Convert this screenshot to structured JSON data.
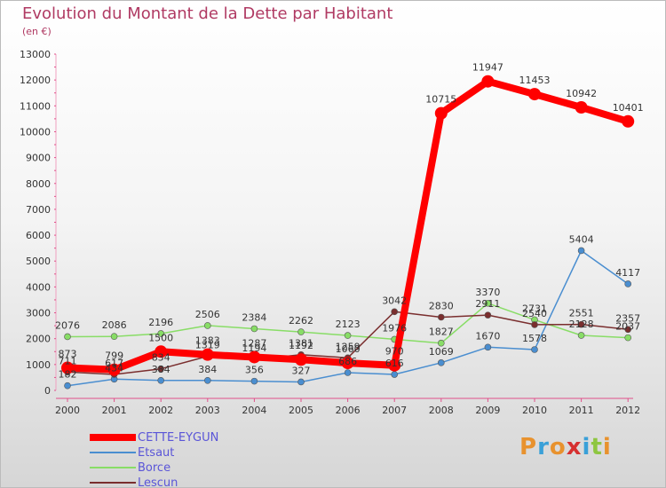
{
  "page": {
    "title": "Evolution du Montant de la Dette par Habitant",
    "subtitle": "(en €)",
    "logo": "Proxiti",
    "logo_colors": [
      "#e8922e",
      "#3aa0d8",
      "#e8922e",
      "#d63030",
      "#3aa0d8",
      "#8ec641",
      "#e8922e"
    ]
  },
  "chart_data": {
    "type": "line",
    "title": "Evolution du Montant de la Dette par Habitant",
    "subtitle": "(en €)",
    "x": [
      "2000",
      "2001",
      "2002",
      "2003",
      "2004",
      "2005",
      "2006",
      "2007",
      "2008",
      "2009",
      "2010",
      "2011",
      "2012"
    ],
    "ylim": [
      0,
      13000
    ],
    "yticks": [
      "0",
      "1000",
      "2000",
      "3000",
      "4000",
      "5000",
      "6000",
      "7000",
      "8000",
      "9000",
      "10000",
      "11000",
      "12000",
      "13000"
    ],
    "grid": false,
    "legend_position": "bottom-left",
    "series": [
      {
        "name": "CETTE-EYGUN",
        "color": "#ff0000",
        "line_width": 8,
        "marker_radius": 7,
        "values": [
          873,
          799,
          1500,
          1383,
          1287,
          1192,
          1060,
          970,
          10715,
          11947,
          11453,
          10942,
          10401
        ],
        "labels": [
          "873",
          "799",
          "1500",
          "1383",
          "1287",
          "1192",
          "1060",
          "970",
          "10715",
          "11947",
          "11453",
          "10942",
          "10401"
        ]
      },
      {
        "name": "Etsaut",
        "color": "#4a8ed0",
        "line_width": 1.5,
        "marker_radius": 3.5,
        "values": [
          182,
          434,
          384,
          384,
          356,
          327,
          686,
          616,
          1069,
          1670,
          1578,
          5404,
          4117
        ],
        "labels": [
          "182",
          "434",
          "384",
          "384",
          "356",
          "327",
          "686",
          "616",
          "1069",
          "1670",
          "1578",
          "5404",
          "4117"
        ]
      },
      {
        "name": "Borce",
        "color": "#88dd66",
        "line_width": 1.5,
        "marker_radius": 3.5,
        "values": [
          2076,
          2086,
          2196,
          2506,
          2384,
          2262,
          2123,
          1976,
          1827,
          3370,
          2731,
          2128,
          2037
        ],
        "labels": [
          "2076",
          "2086",
          "2196",
          "2506",
          "2384",
          "2262",
          "2123",
          "1976",
          "1827",
          "3370",
          "2731",
          "2128",
          "2037"
        ]
      },
      {
        "name": "Lescun",
        "color": "#7a2e2e",
        "line_width": 1.5,
        "marker_radius": 3.5,
        "values": [
          711,
          617,
          834,
          1319,
          1194,
          1381,
          1259,
          3042,
          2830,
          2911,
          2540,
          2551,
          2357
        ],
        "labels": [
          "711",
          "617",
          "834",
          "1319",
          "1194",
          "1381",
          "1259",
          "3042",
          "2830",
          "2911",
          "2540",
          "2551",
          "2357"
        ]
      }
    ]
  }
}
